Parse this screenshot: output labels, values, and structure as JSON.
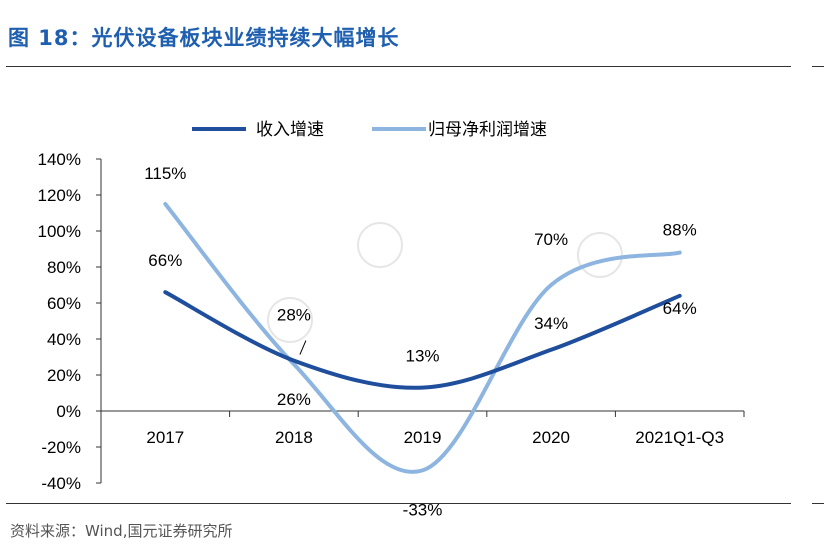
{
  "figure": {
    "title": "图 18：光伏设备板块业绩持续大幅增长",
    "source": "资料来源：Wind,国元证券研究所"
  },
  "chart_data": {
    "type": "line",
    "categories": [
      "2017",
      "2018",
      "2019",
      "2020",
      "2021Q1-Q3"
    ],
    "series": [
      {
        "name": "收入增速",
        "values": [
          66,
          28,
          13,
          34,
          64
        ],
        "color": "#1f4e9c",
        "data_labels": [
          "66%",
          "28%",
          "13%",
          "34%",
          "64%"
        ]
      },
      {
        "name": "归母净利润增速",
        "values": [
          115,
          26,
          -33,
          70,
          88
        ],
        "color": "#8db5e0",
        "data_labels": [
          "115%",
          "26%",
          "-33%",
          "70%",
          "88%"
        ]
      }
    ],
    "yticks": [
      "140%",
      "120%",
      "100%",
      "80%",
      "60%",
      "40%",
      "20%",
      "0%",
      "-20%",
      "-40%"
    ],
    "ylim": [
      -40,
      140
    ],
    "smooth": true,
    "grid": false,
    "legend": "top-center"
  }
}
